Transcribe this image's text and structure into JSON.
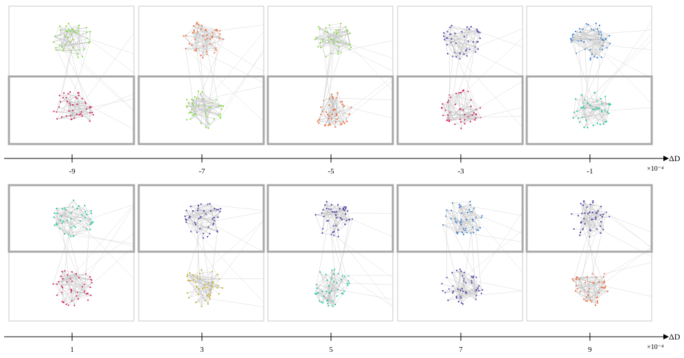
{
  "axis": {
    "label": "ΔD",
    "multiplier": "×10⁻⁴"
  },
  "rows": [
    {
      "ticks": [
        "-9",
        "-7",
        "-5",
        "-3",
        "-1"
      ],
      "panels": [
        {
          "top_color": "#7ddc3a",
          "bottom_color": "#d81b60",
          "highlighted": "bottom"
        },
        {
          "top_color": "#f26b3a",
          "bottom_color": "#7ddc3a",
          "highlighted": "bottom"
        },
        {
          "top_color": "#7ddc3a",
          "bottom_color": "#f26b3a",
          "highlighted": "bottom"
        },
        {
          "top_color": "#4a3aa8",
          "bottom_color": "#d81b60",
          "highlighted": "bottom"
        },
        {
          "top_color": "#3a7fd5",
          "bottom_color": "#1ec9a0",
          "highlighted": "bottom"
        }
      ]
    },
    {
      "ticks": [
        "1",
        "3",
        "5",
        "7",
        "9"
      ],
      "panels": [
        {
          "top_color": "#1ec9a0",
          "bottom_color": "#d81b60",
          "highlighted": "top"
        },
        {
          "top_color": "#4a3aa8",
          "bottom_color": "#c8b020",
          "highlighted": "top"
        },
        {
          "top_color": "#4a3aa8",
          "bottom_color": "#1ec9a0",
          "highlighted": "top"
        },
        {
          "top_color": "#3a7fd5",
          "bottom_color": "#4a3aa8",
          "highlighted": "top"
        },
        {
          "top_color": "#4a3aa8",
          "bottom_color": "#f26b3a",
          "highlighted": "top"
        }
      ]
    }
  ]
}
